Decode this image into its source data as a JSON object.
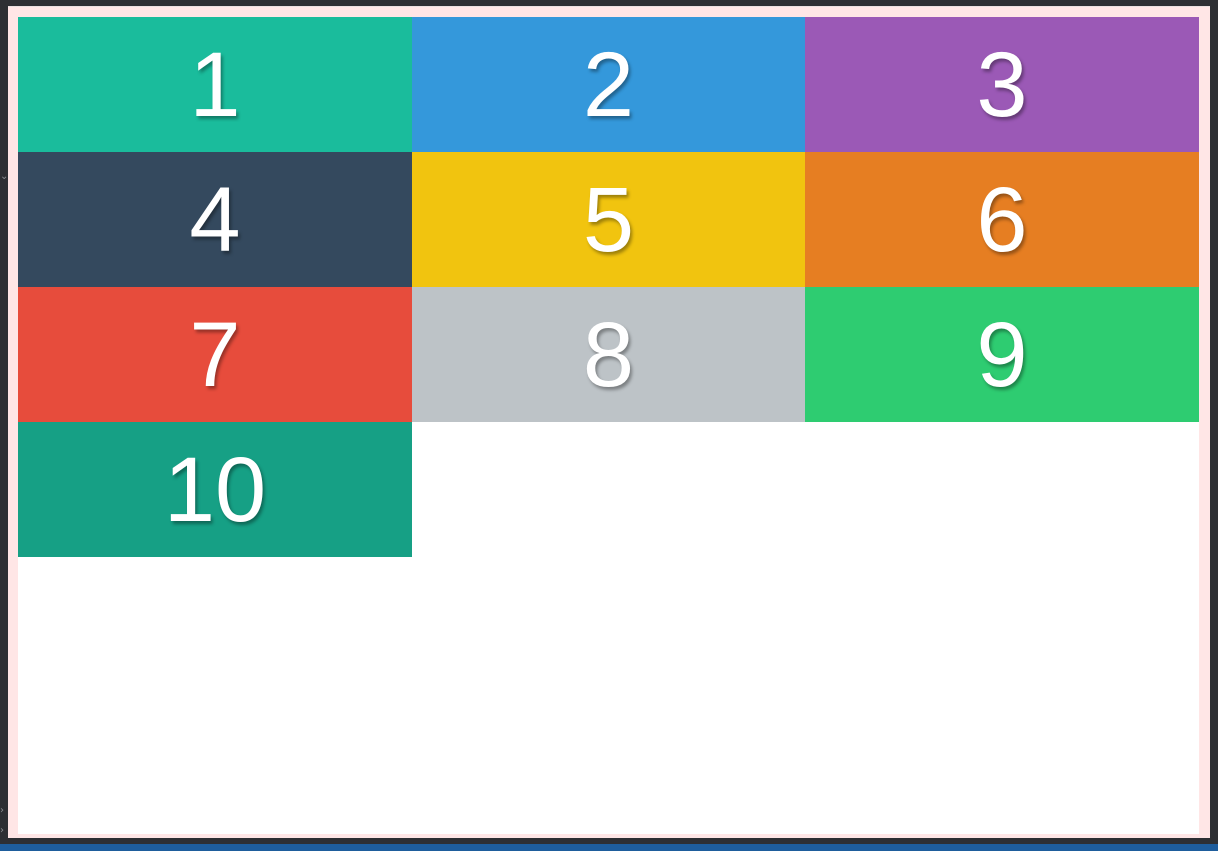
{
  "grid": {
    "cells": [
      {
        "label": "1",
        "color": "#1abc9c"
      },
      {
        "label": "2",
        "color": "#3498db"
      },
      {
        "label": "3",
        "color": "#9b59b6"
      },
      {
        "label": "4",
        "color": "#34495e"
      },
      {
        "label": "5",
        "color": "#f1c40f"
      },
      {
        "label": "6",
        "color": "#e67e22"
      },
      {
        "label": "7",
        "color": "#e74c3c"
      },
      {
        "label": "8",
        "color": "#bdc3c7"
      },
      {
        "label": "9",
        "color": "#2ecc71"
      },
      {
        "label": "10",
        "color": "#16a085"
      }
    ]
  },
  "frame": {
    "border_color": "#ffe6e6",
    "background": "#ffffff"
  }
}
